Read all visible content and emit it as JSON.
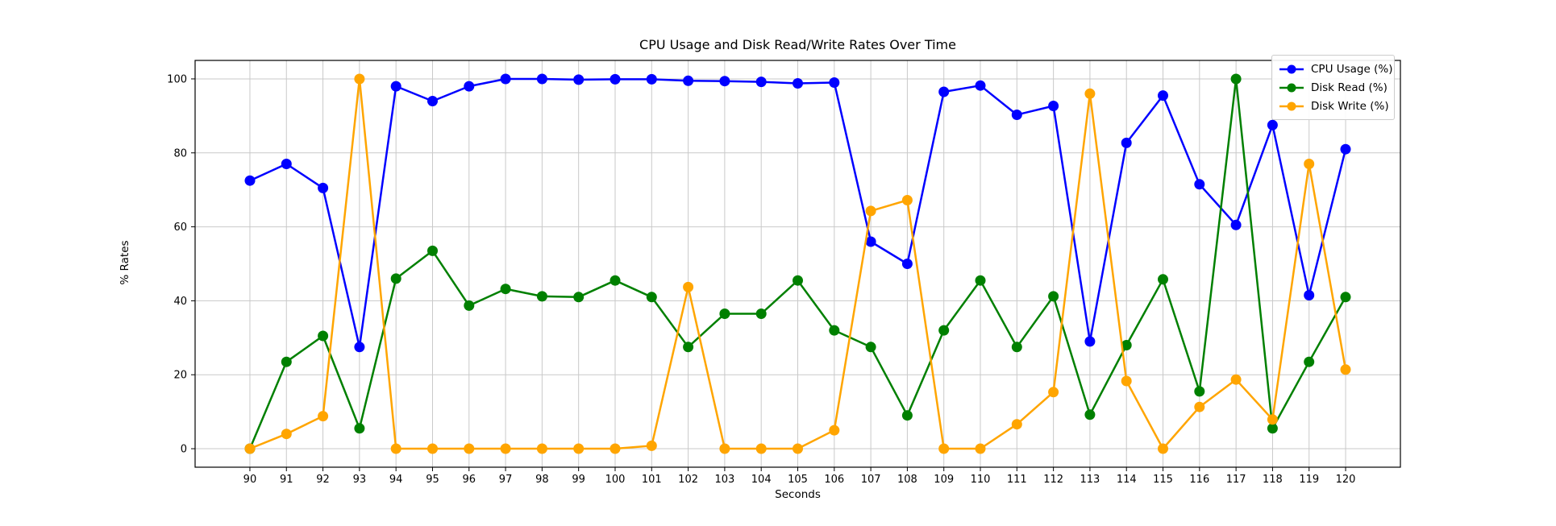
{
  "figure": {
    "background": "#ffffff"
  },
  "chart_data": {
    "type": "line",
    "title": "CPU Usage and Disk Read/Write Rates Over Time",
    "xlabel": "Seconds",
    "ylabel": "% Rates",
    "x": [
      90,
      91,
      92,
      93,
      94,
      95,
      96,
      97,
      98,
      99,
      100,
      101,
      102,
      103,
      104,
      105,
      106,
      107,
      108,
      109,
      110,
      111,
      112,
      113,
      114,
      115,
      116,
      117,
      118,
      119,
      120
    ],
    "series": [
      {
        "name": "CPU Usage (%)",
        "color": "#0000ff",
        "values": [
          72.5,
          77,
          70.5,
          27.5,
          98,
          94,
          98,
          100,
          100,
          99.8,
          99.9,
          99.9,
          99.5,
          99.4,
          99.2,
          98.8,
          99,
          56,
          50,
          96.5,
          98.2,
          90.3,
          92.7,
          29,
          82.7,
          95.5,
          71.5,
          60.5,
          87.5,
          41.5,
          81
        ]
      },
      {
        "name": "Disk Read (%)",
        "color": "#008000",
        "values": [
          0,
          23.5,
          30.5,
          5.5,
          46,
          53.5,
          38.7,
          43.2,
          41.2,
          41,
          45.5,
          41,
          27.5,
          36.5,
          36.5,
          45.5,
          32,
          27.5,
          9,
          32,
          45.5,
          27.5,
          41.2,
          9.2,
          28,
          45.8,
          15.5,
          100,
          5.5,
          23.5,
          41
        ]
      },
      {
        "name": "Disk Write (%)",
        "color": "#ffa500",
        "values": [
          0,
          4,
          8.8,
          100,
          0,
          0,
          0,
          0,
          0,
          0,
          0,
          0.8,
          43.7,
          0,
          0,
          0,
          5,
          64.3,
          67.2,
          0,
          0,
          6.6,
          15.3,
          96,
          18.3,
          0,
          11.3,
          18.7,
          7.9,
          77,
          21.4
        ]
      }
    ],
    "xticks": [
      90,
      91,
      92,
      93,
      94,
      95,
      96,
      97,
      98,
      99,
      100,
      101,
      102,
      103,
      104,
      105,
      106,
      107,
      108,
      109,
      110,
      111,
      112,
      113,
      114,
      115,
      116,
      117,
      118,
      119,
      120
    ],
    "yticks": [
      0,
      20,
      40,
      60,
      80,
      100
    ],
    "xlim": [
      88.5,
      121.5
    ],
    "ylim": [
      -5,
      105
    ],
    "grid": true,
    "grid_color": "#c9c9c9",
    "spine_color": "#000000",
    "legend_position": "upper right"
  }
}
